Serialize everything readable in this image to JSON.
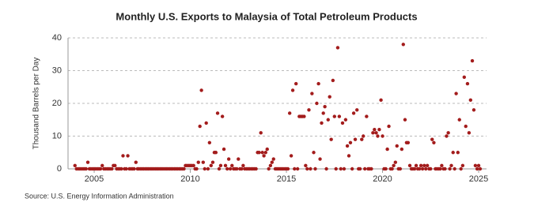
{
  "chart_data": {
    "type": "scatter",
    "title": "Monthly U.S. Exports to Malaysia of Total Petroleum Products",
    "y_label": "Thousand Barrels per Day",
    "source": "Source: U.S. Energy Information Administration",
    "xlim": [
      2003.64,
      2025.41
    ],
    "xticks": [
      2005,
      2010,
      2015,
      2020,
      2025
    ],
    "ylim": [
      0,
      40
    ],
    "yticks": [
      0,
      10,
      20,
      30,
      40
    ],
    "grid": true,
    "series": [
      {
        "color": "#a31c1c",
        "x": [
          2004.0,
          2004.08,
          2004.17,
          2004.25,
          2004.33,
          2004.42,
          2004.5,
          2004.58,
          2004.67,
          2004.75,
          2004.83,
          2004.92,
          2005.0,
          2005.08,
          2005.17,
          2005.25,
          2005.33,
          2005.42,
          2005.5,
          2005.58,
          2005.67,
          2005.75,
          2005.83,
          2005.92,
          2006.0,
          2006.08,
          2006.17,
          2006.25,
          2006.33,
          2006.42,
          2006.5,
          2006.58,
          2006.67,
          2006.75,
          2006.83,
          2006.92,
          2007.0,
          2007.08,
          2007.17,
          2007.25,
          2007.33,
          2007.42,
          2007.5,
          2007.58,
          2007.67,
          2007.75,
          2007.83,
          2007.92,
          2008.0,
          2008.08,
          2008.17,
          2008.25,
          2008.33,
          2008.42,
          2008.5,
          2008.58,
          2008.67,
          2008.75,
          2008.83,
          2008.92,
          2009.0,
          2009.08,
          2009.17,
          2009.25,
          2009.33,
          2009.42,
          2009.5,
          2009.58,
          2009.67,
          2009.75,
          2009.83,
          2009.92,
          2010.0,
          2010.08,
          2010.17,
          2010.25,
          2010.33,
          2010.42,
          2010.5,
          2010.58,
          2010.67,
          2010.75,
          2010.83,
          2010.92,
          2011.0,
          2011.08,
          2011.17,
          2011.25,
          2011.33,
          2011.42,
          2011.5,
          2011.58,
          2011.67,
          2011.75,
          2011.83,
          2011.92,
          2012.0,
          2012.08,
          2012.17,
          2012.25,
          2012.33,
          2012.42,
          2012.5,
          2012.58,
          2012.67,
          2012.75,
          2012.83,
          2012.92,
          2013.0,
          2013.08,
          2013.17,
          2013.25,
          2013.33,
          2013.42,
          2013.5,
          2013.58,
          2013.67,
          2013.75,
          2013.83,
          2013.92,
          2014.0,
          2014.08,
          2014.17,
          2014.25,
          2014.33,
          2014.42,
          2014.5,
          2014.58,
          2014.67,
          2014.75,
          2014.83,
          2014.92,
          2015.0,
          2015.08,
          2015.17,
          2015.25,
          2015.33,
          2015.42,
          2015.5,
          2015.58,
          2015.67,
          2015.75,
          2015.83,
          2015.92,
          2016.0,
          2016.08,
          2016.17,
          2016.25,
          2016.33,
          2016.42,
          2016.5,
          2016.58,
          2016.67,
          2016.75,
          2016.83,
          2016.92,
          2017.0,
          2017.08,
          2017.17,
          2017.25,
          2017.33,
          2017.42,
          2017.5,
          2017.58,
          2017.67,
          2017.75,
          2017.83,
          2017.92,
          2018.0,
          2018.08,
          2018.17,
          2018.25,
          2018.33,
          2018.42,
          2018.5,
          2018.58,
          2018.67,
          2018.75,
          2018.83,
          2018.92,
          2019.0,
          2019.08,
          2019.17,
          2019.25,
          2019.33,
          2019.42,
          2019.5,
          2019.58,
          2019.67,
          2019.75,
          2019.83,
          2019.92,
          2020.0,
          2020.08,
          2020.17,
          2020.25,
          2020.33,
          2020.42,
          2020.5,
          2020.58,
          2020.67,
          2020.75,
          2020.83,
          2020.92,
          2021.0,
          2021.08,
          2021.17,
          2021.25,
          2021.33,
          2021.42,
          2021.5,
          2021.58,
          2021.67,
          2021.75,
          2021.83,
          2021.92,
          2022.0,
          2022.08,
          2022.17,
          2022.25,
          2022.33,
          2022.42,
          2022.5,
          2022.58,
          2022.67,
          2022.75,
          2022.83,
          2022.92,
          2023.0,
          2023.08,
          2023.17,
          2023.25,
          2023.33,
          2023.42,
          2023.5,
          2023.58,
          2023.67,
          2023.75,
          2023.83,
          2023.92,
          2024.0,
          2024.08,
          2024.17,
          2024.25,
          2024.33,
          2024.42,
          2024.5,
          2024.58,
          2024.67,
          2024.75,
          2024.83,
          2024.92,
          2025.0,
          2025.08
        ],
        "values": [
          1,
          0,
          0,
          0,
          0,
          0,
          0,
          0,
          2,
          0,
          0,
          0,
          0,
          0,
          0,
          0,
          0,
          1,
          0,
          0,
          0,
          0,
          0,
          0,
          1,
          1,
          0,
          0,
          0,
          0,
          4,
          0,
          0,
          4,
          0,
          0,
          0,
          0,
          2,
          0,
          0,
          0,
          0,
          0,
          0,
          0,
          0,
          0,
          0,
          0,
          0,
          0,
          0,
          0,
          0,
          0,
          0,
          0,
          0,
          0,
          0,
          0,
          0,
          0,
          0,
          0,
          0,
          0,
          0,
          1,
          1,
          1,
          1,
          1,
          1,
          0,
          0,
          2,
          13,
          24,
          2,
          0,
          14,
          0,
          8,
          1,
          2,
          5,
          5,
          17,
          0,
          1,
          16,
          6,
          1,
          0,
          3,
          0,
          1,
          0,
          0,
          0,
          3,
          0,
          0,
          1,
          0,
          0,
          0,
          0,
          0,
          0,
          0,
          0,
          5,
          5,
          11,
          5,
          4,
          5,
          6,
          0,
          1,
          2,
          3,
          0,
          0,
          0,
          0,
          0,
          0,
          0,
          0,
          0,
          17,
          4,
          24,
          0,
          26,
          0,
          16,
          16,
          16,
          16,
          1,
          0,
          18,
          0,
          23,
          5,
          0,
          20,
          26,
          3,
          14,
          17,
          19,
          0,
          15,
          22,
          9,
          27,
          16,
          0,
          37,
          16,
          0,
          14,
          0,
          15,
          7,
          4,
          8,
          0,
          17,
          9,
          18,
          0,
          0,
          9,
          10,
          0,
          16,
          0,
          0,
          0,
          11,
          12,
          11,
          10,
          12,
          21,
          10,
          0,
          0,
          6,
          13,
          0,
          0,
          1,
          2,
          7,
          0,
          0,
          6,
          38,
          15,
          8,
          8,
          1,
          0,
          0,
          0,
          1,
          0,
          0,
          1,
          0,
          1,
          0,
          1,
          0,
          0,
          9,
          8,
          0,
          0,
          0,
          0,
          1,
          0,
          0,
          10,
          11,
          0,
          1,
          5,
          0,
          23,
          5,
          15,
          0,
          1,
          28,
          13,
          26,
          11,
          21,
          33,
          18,
          1,
          0,
          1,
          0
        ]
      }
    ]
  }
}
